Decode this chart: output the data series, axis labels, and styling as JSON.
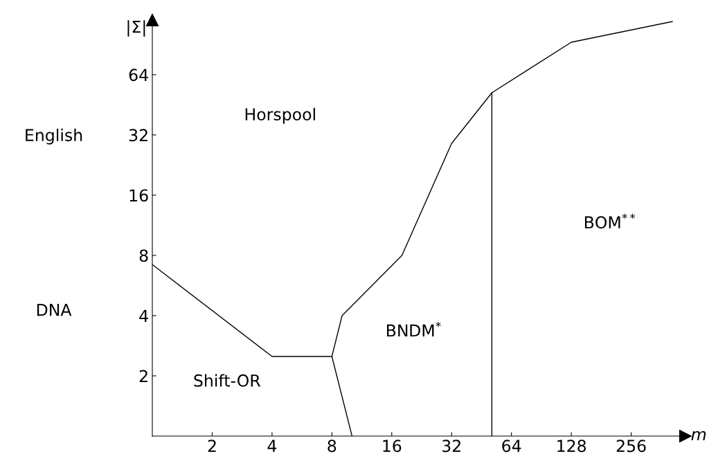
{
  "chart_data": {
    "type": "line",
    "xlabel": "m",
    "ylabel": "|Σ|",
    "log": "xy",
    "grid": false,
    "marker": "none",
    "line_style": "solid",
    "xlim": [
      1,
      480
    ],
    "ylim": [
      1,
      120
    ],
    "xticks": [
      2,
      4,
      8,
      16,
      32,
      64,
      128,
      256
    ],
    "yticks": [
      2,
      4,
      8,
      16,
      32,
      64
    ],
    "series": [
      {
        "color": "#000000",
        "x": [
          1,
          4,
          8,
          9,
          18,
          32,
          51,
          128,
          412
        ],
        "values": [
          7.2,
          2.5,
          2.5,
          4,
          8,
          29,
          52,
          93,
          118
        ]
      },
      {
        "color": "#000000",
        "x": [
          8,
          10.1
        ],
        "values": [
          2.5,
          1
        ]
      },
      {
        "color": "#000000",
        "x": [
          51,
          51
        ],
        "values": [
          52,
          1
        ]
      }
    ],
    "annotations": [
      "Horspool",
      "Shift-OR",
      "BNDM$^{*}$",
      "BOM$^{**}$",
      "English",
      "DNA"
    ]
  }
}
